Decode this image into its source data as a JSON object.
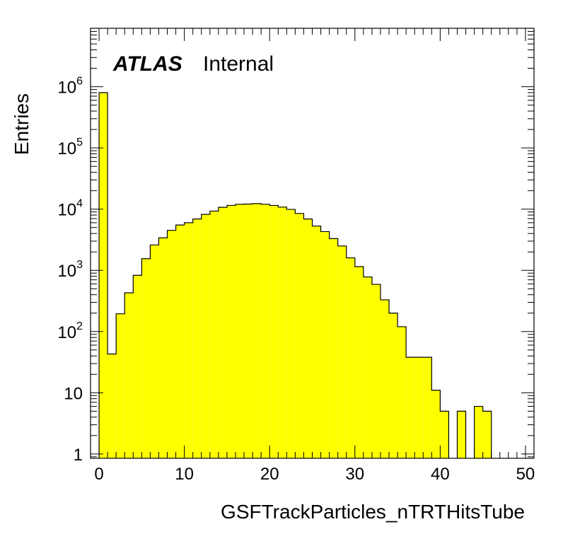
{
  "chart_data": {
    "type": "bar",
    "histogram": true,
    "title": "",
    "xlabel": "GSFTrackParticles_nTRTHitsTube",
    "ylabel": "Entries",
    "xlim": [
      -1,
      51
    ],
    "ylim": [
      0.85,
      9000000
    ],
    "yscale": "log",
    "grid": false,
    "bin_width": 1,
    "bin_edges_start": 0,
    "values": [
      800000,
      43,
      195,
      430,
      830,
      1550,
      2600,
      3400,
      4500,
      5500,
      6000,
      6900,
      8200,
      9300,
      10700,
      11500,
      12000,
      12100,
      12300,
      12000,
      11500,
      10800,
      9900,
      8500,
      6900,
      5300,
      4300,
      3300,
      2500,
      1600,
      1150,
      780,
      590,
      330,
      200,
      120,
      38,
      38,
      38,
      11,
      5,
      0,
      5,
      0,
      6,
      5,
      0,
      0,
      0,
      0
    ],
    "x_ticks": [
      "0",
      "10",
      "20",
      "30",
      "40",
      "50"
    ],
    "y_ticks": [
      {
        "value": 1,
        "base": "1",
        "exp": ""
      },
      {
        "value": 10,
        "base": "10",
        "exp": ""
      },
      {
        "value": 100,
        "base": "10",
        "exp": "2"
      },
      {
        "value": 1000,
        "base": "10",
        "exp": "3"
      },
      {
        "value": 10000,
        "base": "10",
        "exp": "4"
      },
      {
        "value": 100000,
        "base": "10",
        "exp": "5"
      },
      {
        "value": 1000000,
        "base": "10",
        "exp": "6"
      }
    ],
    "fill_color": "#ffff00",
    "line_color": "#000000"
  },
  "label": {
    "atlas": "ATLAS",
    "internal": "Internal"
  }
}
